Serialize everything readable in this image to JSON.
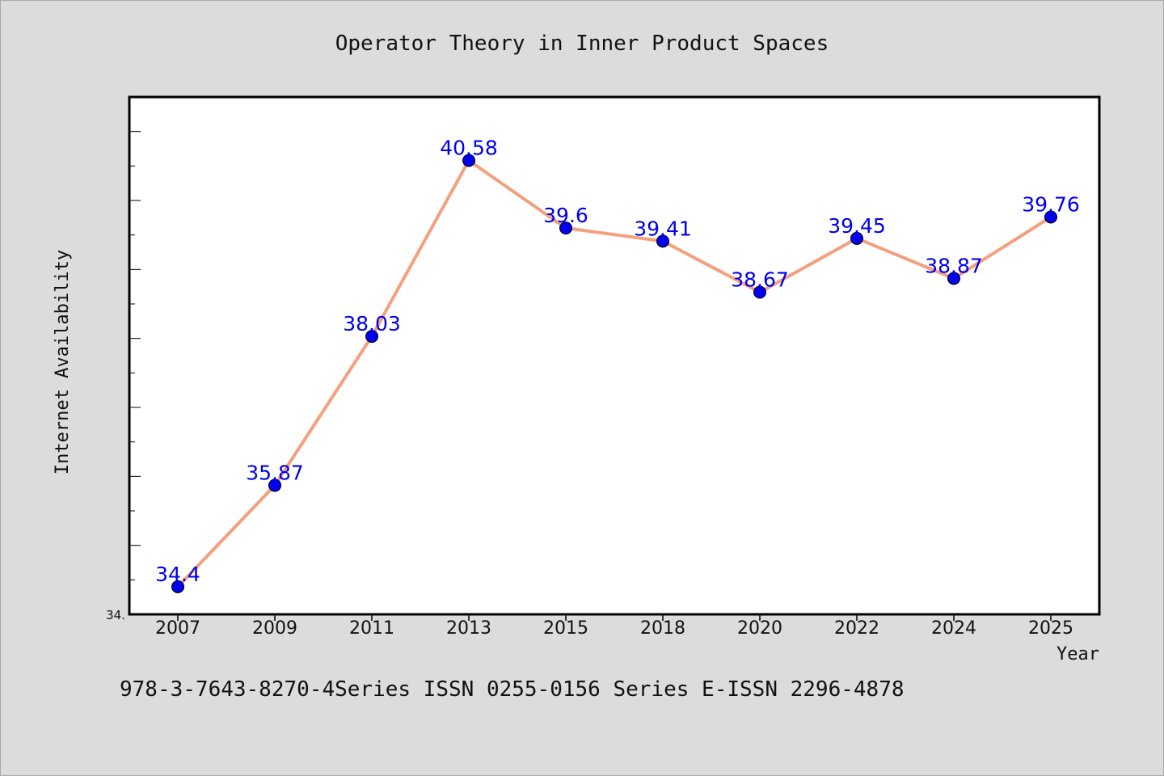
{
  "chart_data": {
    "type": "line",
    "title": "Operator Theory in Inner Product Spaces",
    "xlabel": "Year",
    "ylabel": "Internet Availability",
    "categories": [
      "2007",
      "2009",
      "2011",
      "2013",
      "2015",
      "2018",
      "2020",
      "2022",
      "2024",
      "2025"
    ],
    "series": [
      {
        "values": [
          34.4,
          35.87,
          38.03,
          40.58,
          39.6,
          39.41,
          38.67,
          39.45,
          38.87,
          39.76
        ],
        "labels": [
          "34.4",
          "35.87",
          "38.03",
          "40.58",
          "39.6",
          "39.41",
          "38.67",
          "39.45",
          "38.87",
          "39.76"
        ]
      }
    ],
    "y_tick_labels": [
      "34."
    ],
    "ylim": [
      34.0,
      41.5
    ],
    "grid": false,
    "colors": {
      "line": "#f4a07e",
      "marker": "#0000ee",
      "data_label": "#0000ee",
      "plot_bg": "#ffffff",
      "page_bg": "#dcdcdc"
    }
  },
  "footer": {
    "text": "978-3-7643-8270-4Series ISSN 0255-0156 Series E-ISSN 2296-4878"
  }
}
